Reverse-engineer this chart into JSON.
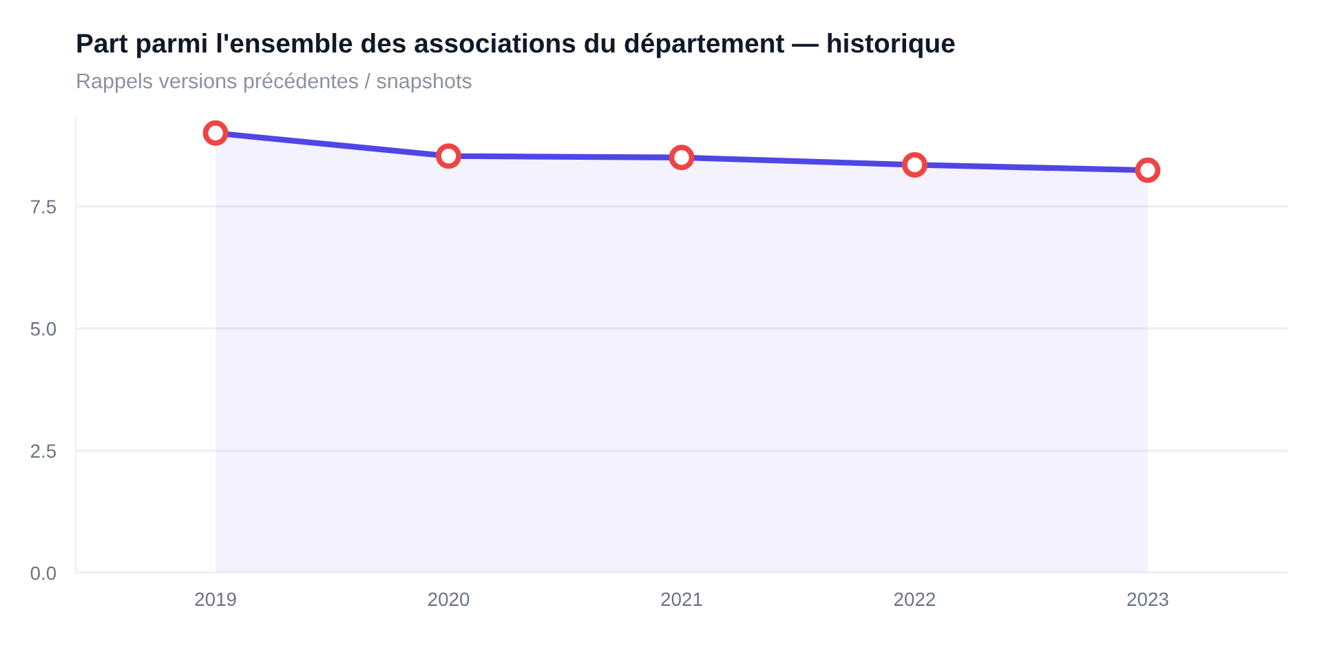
{
  "chart_data": {
    "type": "area",
    "title": "Part parmi l'ensemble des associations du département — historique",
    "subtitle": "Rappels versions précédentes / snapshots",
    "categories": [
      "2019",
      "2020",
      "2021",
      "2022",
      "2023"
    ],
    "series": [
      {
        "color": "#4f46e5",
        "values": [
          9.0,
          8.53,
          8.5,
          8.35,
          8.24
        ]
      }
    ],
    "ylim": [
      0,
      9.3
    ],
    "yticks": [
      {
        "value": 0,
        "label": "0.0"
      },
      {
        "value": 2.5,
        "label": "2.5"
      },
      {
        "value": 5,
        "label": "5.0"
      },
      {
        "value": 7.5,
        "label": "7.5"
      }
    ],
    "grid": "y",
    "marker": "circle",
    "line_style": "solid"
  }
}
